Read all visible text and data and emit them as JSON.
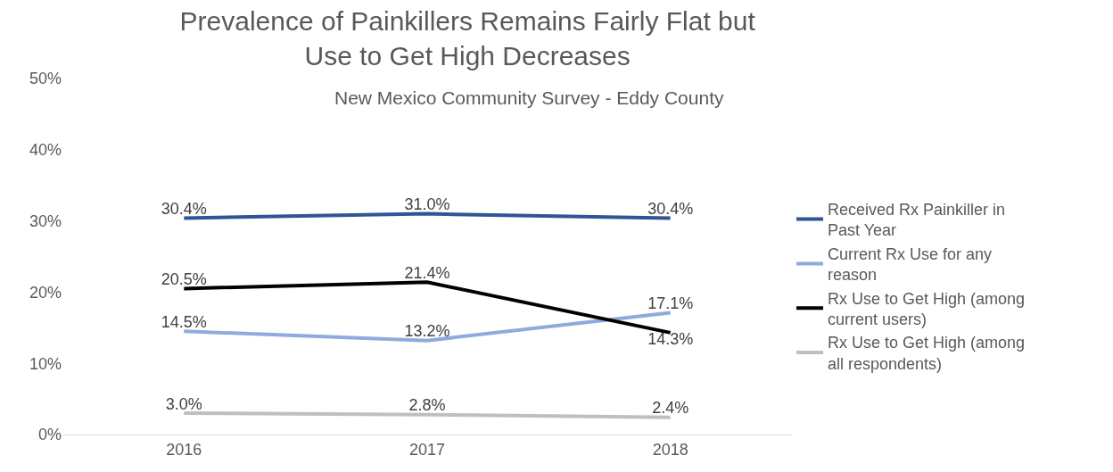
{
  "chart_data": {
    "type": "line",
    "title": "Prevalence of Painkillers Remains Fairly Flat but Use to Get High Decreases",
    "subtitle": "New Mexico Community Survey - Eddy County",
    "categories": [
      "2016",
      "2017",
      "2018"
    ],
    "series": [
      {
        "name": "Received Rx Painkiller in Past Year",
        "color": "#2f5597",
        "values": [
          30.4,
          31.0,
          30.4
        ],
        "value_labels": [
          "30.4%",
          "31.0%",
          "30.4%"
        ]
      },
      {
        "name": "Current Rx Use for any reason",
        "color": "#8faadc",
        "values": [
          14.5,
          13.2,
          17.1
        ],
        "value_labels": [
          "14.5%",
          "13.2%",
          "17.1%"
        ]
      },
      {
        "name": "Rx Use to Get High (among current users)",
        "color": "#000000",
        "values": [
          20.5,
          21.4,
          14.3
        ],
        "value_labels": [
          "20.5%",
          "21.4%",
          "14.3%"
        ]
      },
      {
        "name": "Rx Use to Get High (among all respondents)",
        "color": "#bfbfbf",
        "values": [
          3.0,
          2.8,
          2.4
        ],
        "value_labels": [
          "3.0%",
          "2.8%",
          "2.4%"
        ]
      }
    ],
    "ylim": [
      0,
      50
    ],
    "yticks": [
      {
        "value": 0,
        "label": "0%"
      },
      {
        "value": 10,
        "label": "10%"
      },
      {
        "value": 20,
        "label": "20%"
      },
      {
        "value": 30,
        "label": "30%"
      },
      {
        "value": 40,
        "label": "40%"
      },
      {
        "value": 50,
        "label": "50%"
      }
    ],
    "legend": "right",
    "marker": "none",
    "line_style": "solid"
  }
}
